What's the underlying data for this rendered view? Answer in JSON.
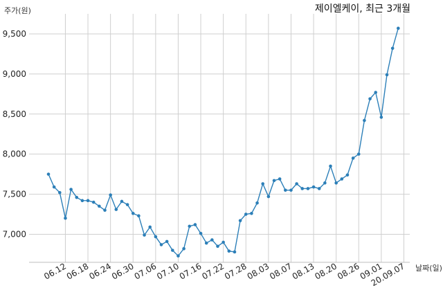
{
  "chart_data": {
    "type": "line",
    "title": "제이엘케이, 최근 3개월",
    "ylabel": "주가(원)",
    "xlabel": "날짜(일)",
    "ylim": [
      6650,
      9750
    ],
    "yticks": [
      7000,
      7500,
      8000,
      8500,
      9000,
      9500
    ],
    "ytick_labels": [
      "7,000",
      "7,500",
      "8,000",
      "8,500",
      "9,000",
      "9,500"
    ],
    "xtick_labels": [
      "06.12",
      "06.18",
      "06.24",
      "06.30",
      "07.06",
      "07.10",
      "07.16",
      "07.22",
      "07.28",
      "08.03",
      "08.07",
      "08.13",
      "08.20",
      "08.26",
      "09.01",
      "20.09.07"
    ],
    "xtick_positions": [
      3,
      7,
      11,
      15,
      19,
      23,
      27,
      31,
      35,
      39,
      43,
      47,
      51,
      55,
      59,
      63
    ],
    "grid": true,
    "line_color": "#2c7fb8",
    "series": [
      {
        "values": [
          7750,
          7590,
          7520,
          7200,
          7560,
          7460,
          7420,
          7420,
          7400,
          7350,
          7300,
          7490,
          7310,
          7410,
          7370,
          7260,
          7230,
          6990,
          7090,
          6970,
          6870,
          6910,
          6800,
          6730,
          6820,
          7100,
          7120,
          7010,
          6890,
          6930,
          6850,
          6900,
          6790,
          6780,
          7170,
          7250,
          7260,
          7390,
          7630,
          7470,
          7670,
          7690,
          7550,
          7550,
          7630,
          7570,
          7570,
          7590,
          7570,
          7640,
          7850,
          7640,
          7690,
          7740,
          7950,
          8000,
          8420,
          8690,
          8770,
          8460,
          8990,
          9320,
          9570
        ]
      }
    ]
  }
}
